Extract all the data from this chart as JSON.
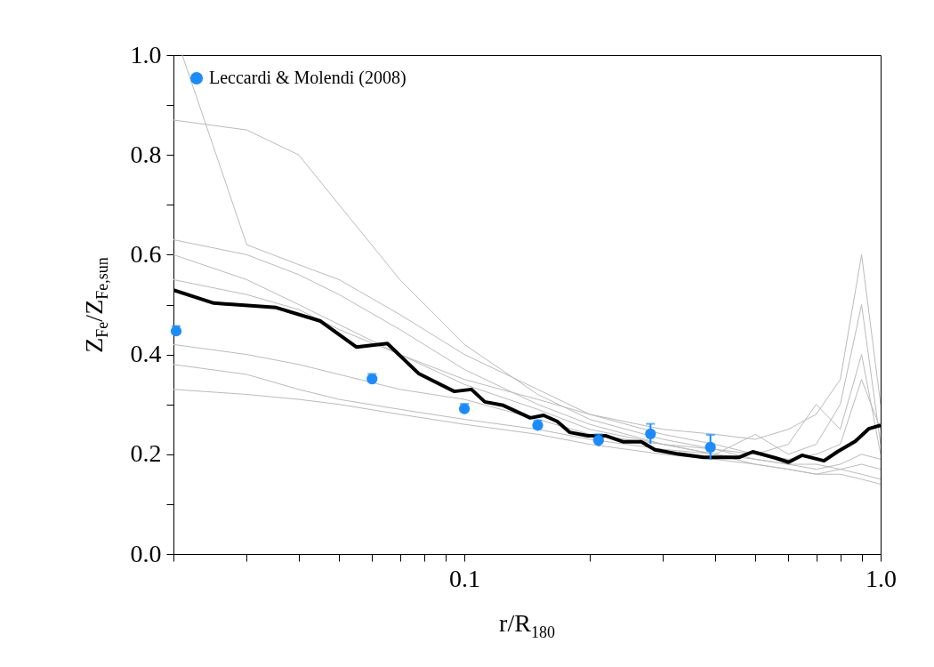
{
  "chart_data": {
    "type": "line",
    "xlabel": "r/R$_{180}$",
    "ylabel": "Z$_{Fe}$/Z$_{Fe,sun}$",
    "log": "x",
    "grid": false,
    "legend": "top left",
    "xlim": [
      0.02,
      1
    ],
    "ylim": [
      0,
      1
    ],
    "xticks": [
      {
        "value": 0.02,
        "label": null
      },
      {
        "value": 0.03,
        "label": null
      },
      {
        "value": 0.04,
        "label": null
      },
      {
        "value": 0.05,
        "label": null
      },
      {
        "value": 0.06,
        "label": null
      },
      {
        "value": 0.07,
        "label": null
      },
      {
        "value": 0.08,
        "label": null
      },
      {
        "value": 0.09,
        "label": null
      },
      0.1,
      {
        "value": 0.2,
        "label": null
      },
      {
        "value": 0.3,
        "label": null
      },
      {
        "value": 0.4,
        "label": null
      },
      {
        "value": 0.5,
        "label": null
      },
      {
        "value": 0.6,
        "label": null
      },
      {
        "value": 0.7,
        "label": null
      },
      {
        "value": 0.8,
        "label": null
      },
      {
        "value": 0.9,
        "label": null
      },
      {
        "value": 1,
        "label": "1.0"
      }
    ],
    "yticks": [
      {
        "value": 0,
        "label": "0.0"
      },
      {
        "value": 0.1,
        "label": null
      },
      0.2,
      {
        "value": 0.3,
        "label": null
      },
      0.4,
      {
        "value": 0.5,
        "label": null
      },
      0.6,
      {
        "value": 0.7,
        "label": null
      },
      0.8,
      {
        "value": 0.9,
        "label": null
      },
      {
        "value": 1,
        "label": "1.0"
      }
    ],
    "series": [
      {
        "color": "#bbbbbb",
        "x": [
          0.021,
          0.03,
          0.04,
          0.05,
          0.07,
          0.1,
          0.15,
          0.2,
          0.3,
          0.4,
          0.5,
          0.6,
          0.7,
          0.8,
          0.9,
          1
        ],
        "values": [
          1.0,
          0.62,
          0.58,
          0.55,
          0.48,
          0.4,
          0.33,
          0.28,
          0.24,
          0.22,
          0.2,
          0.19,
          0.2,
          0.22,
          0.35,
          0.25
        ]
      },
      {
        "type": "line",
        "color": "#bbbbbb",
        "x": [
          0.02,
          0.03,
          0.04,
          0.05,
          0.07,
          0.1,
          0.15,
          0.2,
          0.3,
          0.4,
          0.5,
          0.6,
          0.7,
          0.8,
          0.9,
          1
        ],
        "values": [
          0.87,
          0.85,
          0.8,
          0.7,
          0.55,
          0.42,
          0.32,
          0.27,
          0.23,
          0.21,
          0.19,
          0.18,
          0.17,
          0.18,
          0.2,
          0.19
        ]
      },
      {
        "type": "line",
        "color": "#bbbbbb",
        "x": [
          0.02,
          0.03,
          0.04,
          0.05,
          0.07,
          0.1,
          0.15,
          0.2,
          0.3,
          0.4,
          0.5,
          0.6,
          0.7,
          0.8,
          0.9,
          1
        ],
        "values": [
          0.63,
          0.6,
          0.56,
          0.52,
          0.45,
          0.37,
          0.3,
          0.26,
          0.22,
          0.2,
          0.18,
          0.17,
          0.16,
          0.17,
          0.18,
          0.17
        ]
      },
      {
        "type": "line",
        "color": "#bbbbbb",
        "x": [
          0.02,
          0.03,
          0.04,
          0.05,
          0.07,
          0.1,
          0.15,
          0.2,
          0.3,
          0.4,
          0.5,
          0.6,
          0.7,
          0.8,
          0.9,
          1
        ],
        "values": [
          0.6,
          0.55,
          0.5,
          0.46,
          0.4,
          0.34,
          0.29,
          0.25,
          0.22,
          0.21,
          0.2,
          0.22,
          0.3,
          0.25,
          0.4,
          0.2
        ]
      },
      {
        "type": "line",
        "color": "#bbbbbb",
        "x": [
          0.02,
          0.03,
          0.04,
          0.05,
          0.07,
          0.1,
          0.15,
          0.2,
          0.3,
          0.4,
          0.5,
          0.6,
          0.7,
          0.8,
          0.9,
          1
        ],
        "values": [
          0.42,
          0.4,
          0.38,
          0.36,
          0.33,
          0.31,
          0.27,
          0.24,
          0.22,
          0.2,
          0.19,
          0.18,
          0.18,
          0.17,
          0.16,
          0.15
        ]
      },
      {
        "type": "line",
        "color": "#bbbbbb",
        "x": [
          0.02,
          0.03,
          0.04,
          0.05,
          0.07,
          0.1,
          0.15,
          0.2,
          0.3,
          0.4,
          0.5,
          0.6,
          0.7,
          0.8,
          0.9,
          1
        ],
        "values": [
          0.33,
          0.32,
          0.31,
          0.3,
          0.28,
          0.26,
          0.24,
          0.22,
          0.2,
          0.19,
          0.18,
          0.17,
          0.16,
          0.16,
          0.15,
          0.14
        ]
      },
      {
        "type": "line",
        "color": "#bbbbbb",
        "x": [
          0.02,
          0.03,
          0.04,
          0.05,
          0.07,
          0.1,
          0.15,
          0.2,
          0.3,
          0.4,
          0.5,
          0.6,
          0.7,
          0.8,
          0.9,
          1
        ],
        "values": [
          0.38,
          0.36,
          0.33,
          0.31,
          0.29,
          0.27,
          0.25,
          0.23,
          0.21,
          0.2,
          0.24,
          0.2,
          0.22,
          0.3,
          0.5,
          0.22
        ]
      },
      {
        "type": "line",
        "color": "#bbbbbb",
        "x": [
          0.02,
          0.03,
          0.04,
          0.05,
          0.07,
          0.1,
          0.15,
          0.2,
          0.3,
          0.4,
          0.5,
          0.6,
          0.7,
          0.8,
          0.9,
          1
        ],
        "values": [
          0.55,
          0.52,
          0.49,
          0.45,
          0.4,
          0.35,
          0.31,
          0.28,
          0.25,
          0.24,
          0.23,
          0.25,
          0.28,
          0.35,
          0.6,
          0.3
        ]
      },
      {
        "color": "#000000",
        "x": [
          0.02,
          0.025,
          0.0353,
          0.0451,
          0.055,
          0.0653,
          0.0776,
          0.0946,
          0.104,
          0.112,
          0.124,
          0.144,
          0.155,
          0.167,
          0.179,
          0.198,
          0.219,
          0.241,
          0.266,
          0.287,
          0.324,
          0.376,
          0.458,
          0.493,
          0.557,
          0.601,
          0.647,
          0.731,
          0.787,
          0.869,
          0.936,
          1
        ],
        "values": [
          0.529,
          0.503,
          0.494,
          0.467,
          0.415,
          0.422,
          0.362,
          0.326,
          0.33,
          0.305,
          0.298,
          0.273,
          0.278,
          0.266,
          0.244,
          0.237,
          0.237,
          0.225,
          0.225,
          0.209,
          0.201,
          0.194,
          0.194,
          0.205,
          0.193,
          0.184,
          0.198,
          0.187,
          0.205,
          0.226,
          0.251,
          0.258
        ]
      },
      {
        "type": "scatter",
        "name": "Leccardi & Molendi (2008)",
        "color": "#1a8cff",
        "marker": "circle",
        "x": [
          0.0203,
          0.06,
          0.1,
          0.15,
          0.21,
          0.28,
          0.39
        ],
        "values": [
          0.447,
          0.351,
          0.291,
          0.258,
          0.228,
          0.241,
          0.214
        ],
        "errors": [
          0.01,
          0.01,
          0.01,
          0.01,
          0.012,
          0.02,
          0.025
        ]
      }
    ]
  }
}
